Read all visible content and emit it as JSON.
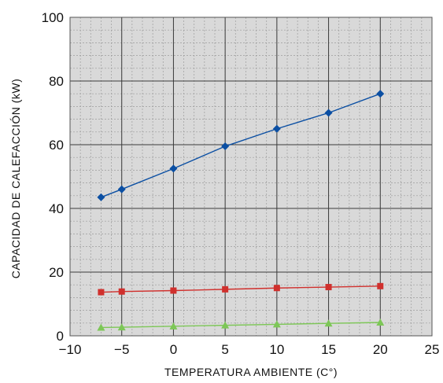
{
  "chart_data": {
    "type": "line",
    "title": "",
    "xlabel": "TEMPERATURA AMBIENTE (C°)",
    "ylabel": "CAPACIDAD DE CALEFACCIÓN (kW)",
    "xlim": [
      -10,
      25
    ],
    "ylim": [
      0,
      100
    ],
    "x_ticks": [
      -10,
      -5,
      0,
      5,
      10,
      15,
      20,
      25
    ],
    "y_ticks": [
      0,
      20,
      40,
      60,
      80,
      100
    ],
    "x_minor_step": 1,
    "y_minor_step": 4,
    "grid": true,
    "background": "#d9d9d9",
    "series": [
      {
        "color": "#0b4fa3",
        "marker": "diamond",
        "x": [
          -7,
          -5,
          0,
          5,
          10,
          15,
          20
        ],
        "y": [
          43.5,
          46,
          52.5,
          59.5,
          65,
          70,
          76
        ]
      },
      {
        "color": "#d0302d",
        "marker": "square",
        "x": [
          -7,
          -5,
          0,
          5,
          10,
          15,
          20
        ],
        "y": [
          13.7,
          13.9,
          14.2,
          14.6,
          15,
          15.3,
          15.6
        ]
      },
      {
        "color": "#7dc757",
        "marker": "triangle",
        "x": [
          -7,
          -5,
          0,
          5,
          10,
          15,
          20
        ],
        "y": [
          2.6,
          2.7,
          3,
          3.3,
          3.6,
          3.9,
          4.2
        ]
      }
    ]
  }
}
